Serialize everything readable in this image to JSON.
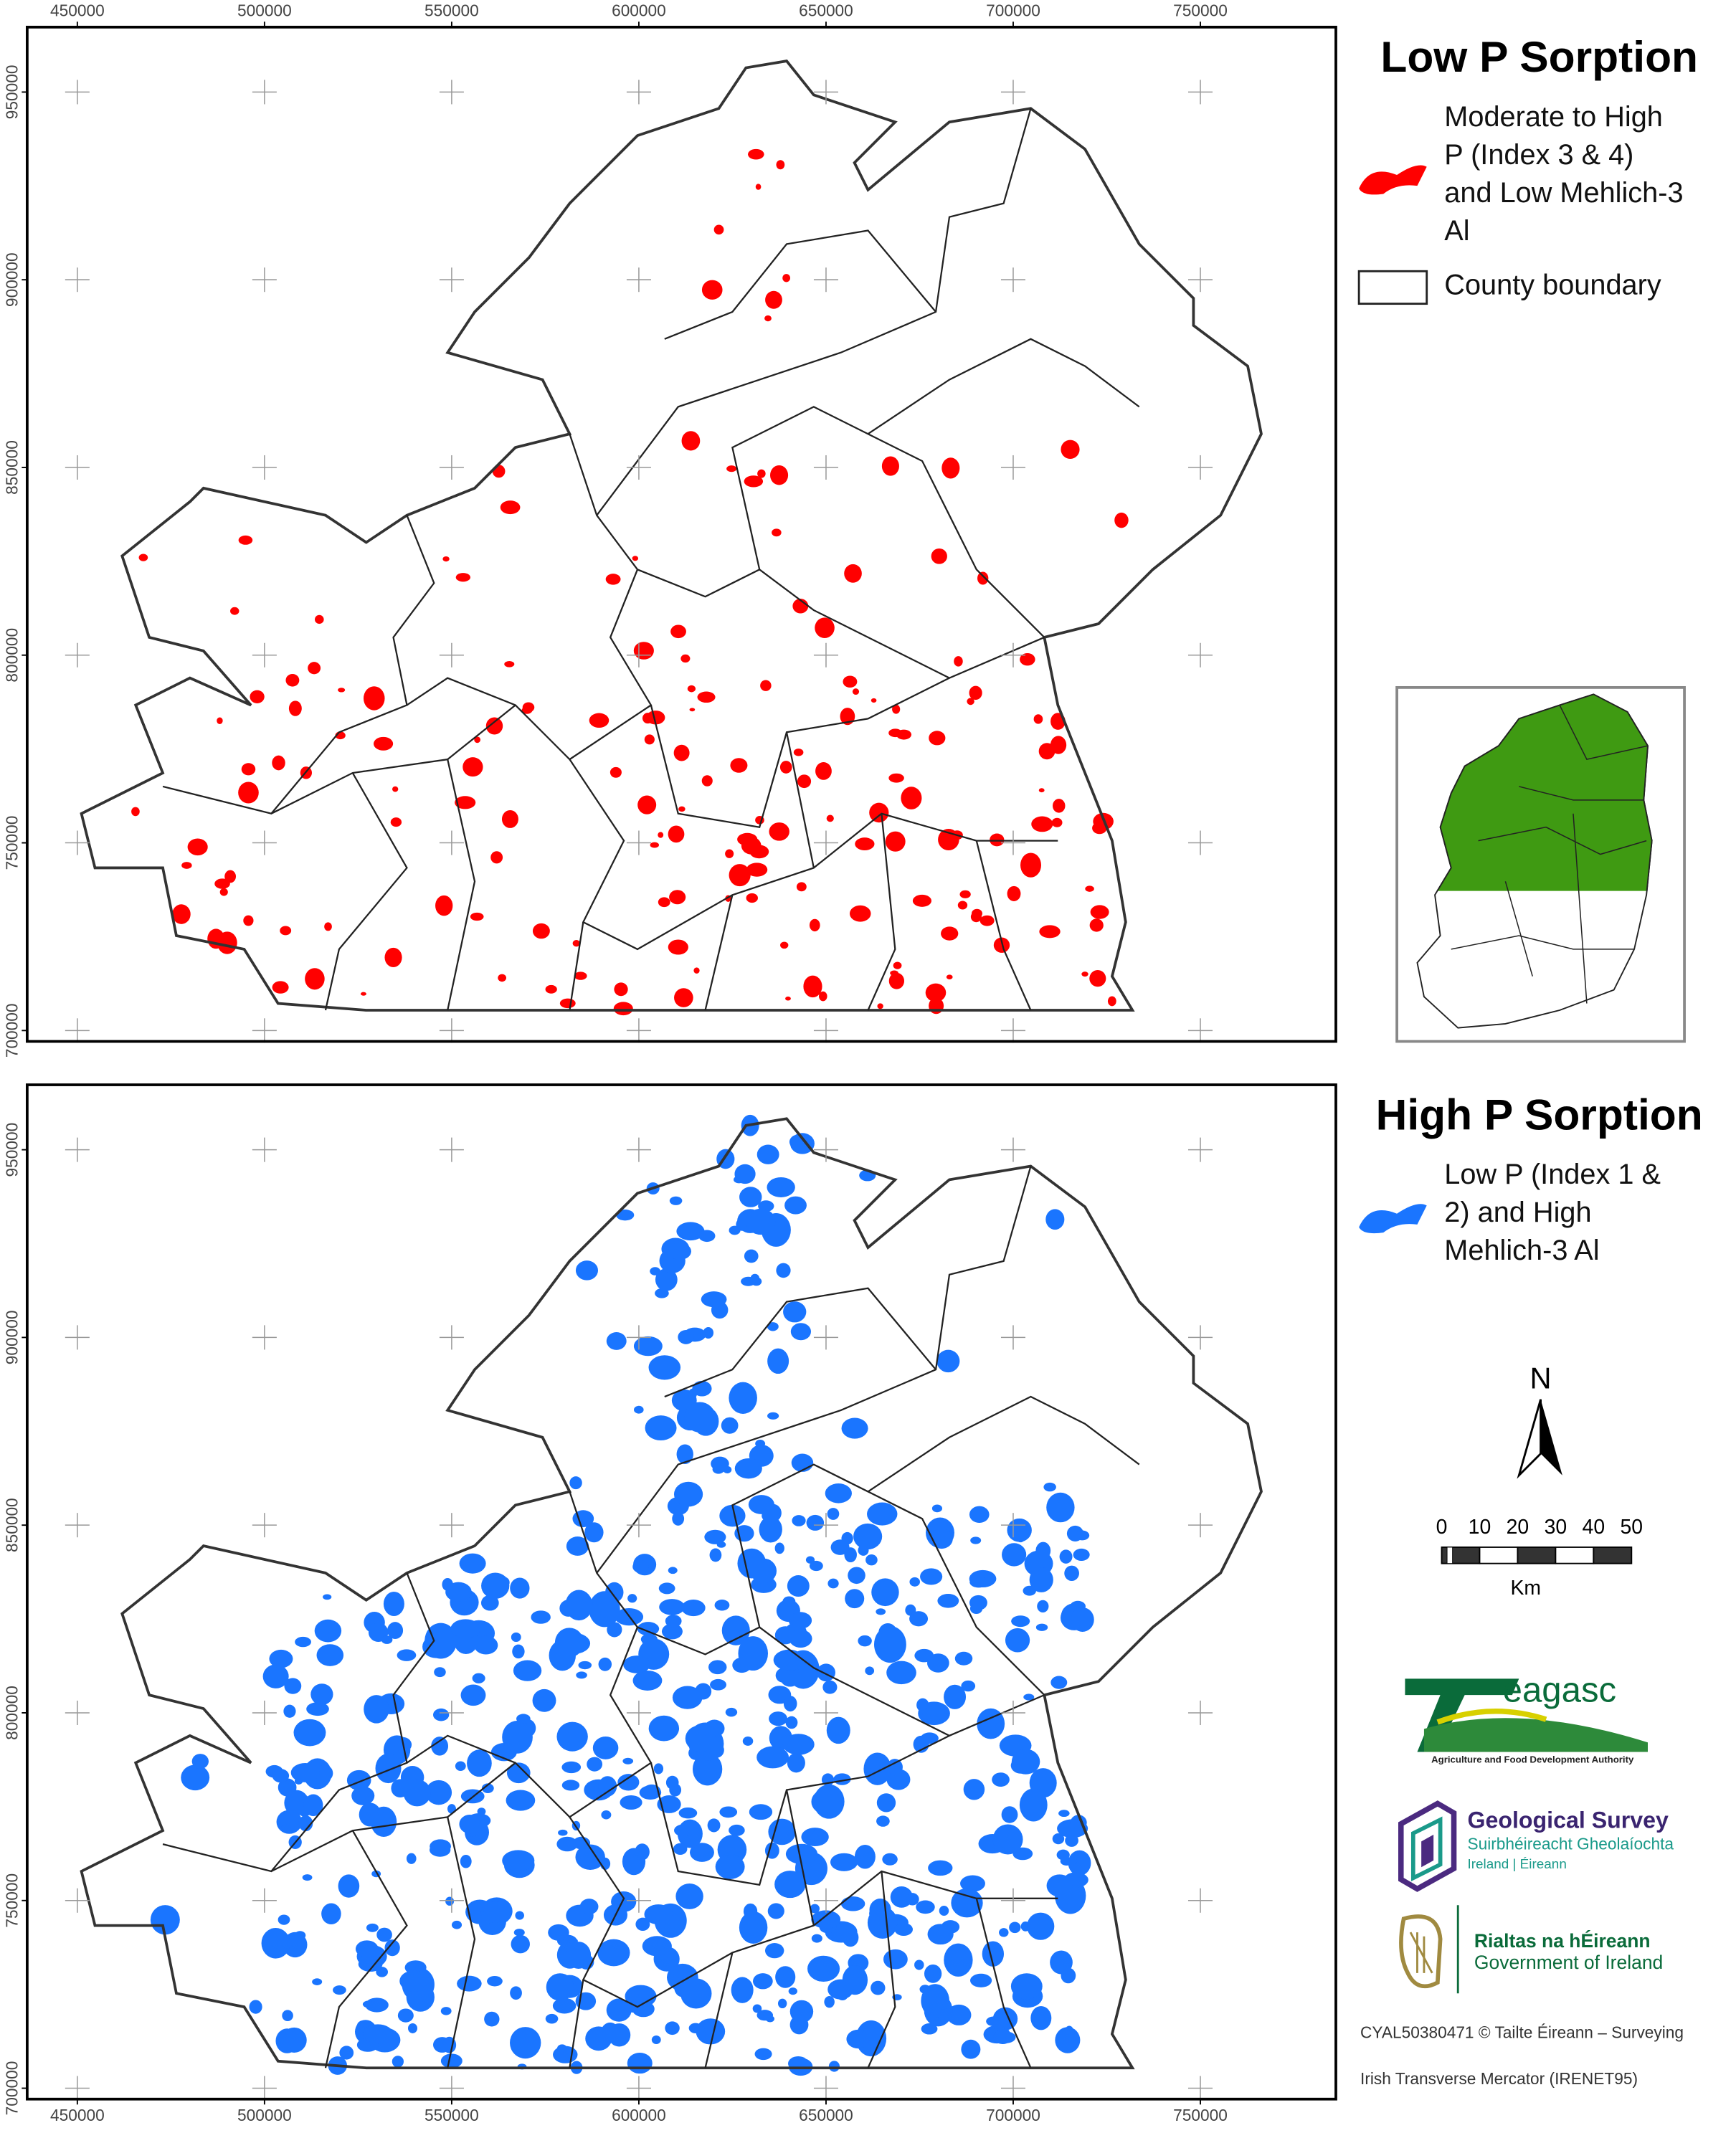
{
  "maps": [
    {
      "title": "Low P Sorption",
      "legend": [
        {
          "label_lines": [
            "Moderate to High",
            "P (Index 3 & 4)",
            "and Low Mehlich-3",
            "Al"
          ],
          "color": "#ff0000"
        },
        {
          "label_lines": [
            "County boundary"
          ]
        }
      ],
      "xlim": [
        436600,
        786200
      ],
      "ylim": [
        697100,
        967300
      ],
      "xticks": [
        450000,
        500000,
        550000,
        600000,
        650000,
        700000,
        750000
      ],
      "yticks": [
        700000,
        750000,
        800000,
        850000,
        900000,
        950000
      ],
      "xtick_side": "top"
    },
    {
      "title": "High P Sorption",
      "legend": [
        {
          "label_lines": [
            "Low P (Index 1 &",
            "2) and High",
            "Mehlich-3 Al"
          ],
          "color": "#1a75ff"
        }
      ],
      "xlim": [
        436600,
        786200
      ],
      "ylim": [
        697100,
        967300
      ],
      "xticks": [
        450000,
        500000,
        550000,
        600000,
        650000,
        700000,
        750000
      ],
      "yticks": [
        700000,
        750000,
        800000,
        850000,
        900000,
        950000
      ],
      "xtick_side": "bottom"
    }
  ],
  "north_arrow": "N",
  "scale_bar": {
    "ticks": [
      0,
      10,
      20,
      30,
      40,
      50
    ],
    "unit": "Km"
  },
  "logos": {
    "teagasc": {
      "name": "eagasc",
      "tagline": "Agriculture and Food Development Authority"
    },
    "gsi": {
      "name": "Geological Survey",
      "irish": "Suirbhéireacht Gheolaíochta",
      "country": "Ireland | Éireann"
    },
    "gov": {
      "irish": "Rialtas na hÉireann",
      "english": "Government of Ireland"
    }
  },
  "credits": [
    "CYAL50380471 © Tailte Éireann – Surveying",
    "Irish Transverse Mercator (IRENET95)"
  ]
}
